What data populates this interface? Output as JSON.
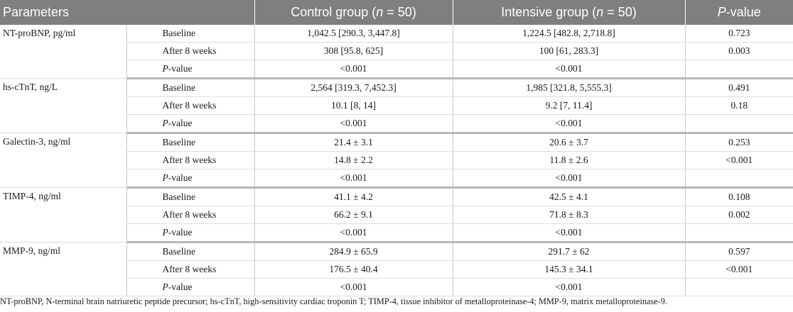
{
  "header": {
    "parameters": "Parameters",
    "control": {
      "pre": "Control group (",
      "n": "n",
      "post": " = 50)"
    },
    "intensive": {
      "pre": "Intensive group (",
      "n": "n",
      "post": " = 50)"
    },
    "p": {
      "P": "P",
      "rest": "-value"
    }
  },
  "groups": [
    {
      "name": "NT-proBNP, pg/ml",
      "rows": [
        {
          "time": "Baseline",
          "control": "1,042.5 [290.3, 3,447.8]",
          "intensive": "1,224.5 [482.8, 2,718.8]",
          "p": "0.723"
        },
        {
          "time": "After 8 weeks",
          "control": "308 [95.8, 625]",
          "intensive": "100 [61, 283.3]",
          "p": "0.003"
        },
        {
          "time": "P-value",
          "control": "<0.001",
          "intensive": "<0.001",
          "p": ""
        }
      ]
    },
    {
      "name": "hs-cTnT, ng/L",
      "rows": [
        {
          "time": "Baseline",
          "control": "2,564 [319.3, 7,452.3]",
          "intensive": "1,985 [321.8, 5,555.3]",
          "p": "0.491"
        },
        {
          "time": "After 8 weeks",
          "control": "10.1 [8, 14]",
          "intensive": "9.2 [7, 11.4]",
          "p": "0.18"
        },
        {
          "time": "P-value",
          "control": "<0.001",
          "intensive": "<0.001",
          "p": ""
        }
      ]
    },
    {
      "name": "Galectin-3, ng/ml",
      "rows": [
        {
          "time": "Baseline",
          "control": "21.4 ± 3.1",
          "intensive": "20.6 ± 3.7",
          "p": "0.253"
        },
        {
          "time": "After 8 weeks",
          "control": "14.8 ± 2.2",
          "intensive": "11.8 ± 2.6",
          "p": "<0.001"
        },
        {
          "time": "P-value",
          "control": "<0.001",
          "intensive": "<0.001",
          "p": ""
        }
      ]
    },
    {
      "name": "TIMP-4, ng/ml",
      "rows": [
        {
          "time": "Baseline",
          "control": "41.1 ± 4.2",
          "intensive": "42.5 ± 4.1",
          "p": "0.108"
        },
        {
          "time": "After 8 weeks",
          "control": "66.2 ± 9.1",
          "intensive": "71.8 ± 8.3",
          "p": "0.002"
        },
        {
          "time": "P-value",
          "control": "<0.001",
          "intensive": "<0.001",
          "p": ""
        }
      ]
    },
    {
      "name": "MMP-9, ng/ml",
      "rows": [
        {
          "time": "Baseline",
          "control": "284.9 ± 65.9",
          "intensive": "291.7 ± 62",
          "p": "0.597"
        },
        {
          "time": "After 8 weeks",
          "control": "176.5 ± 40.4",
          "intensive": "145.3 ± 34.1",
          "p": "<0.001"
        },
        {
          "time": "P-value",
          "control": "<0.001",
          "intensive": "<0.001",
          "p": ""
        }
      ]
    }
  ],
  "footnote": "NT-proBNP, N-terminal brain natriuretic peptide precursor; hs-cTnT, high-sensitivity cardiac troponin T; TIMP-4, tissue inhibitor of metalloproteinase-4; MMP-9, matrix metalloproteinase-9."
}
